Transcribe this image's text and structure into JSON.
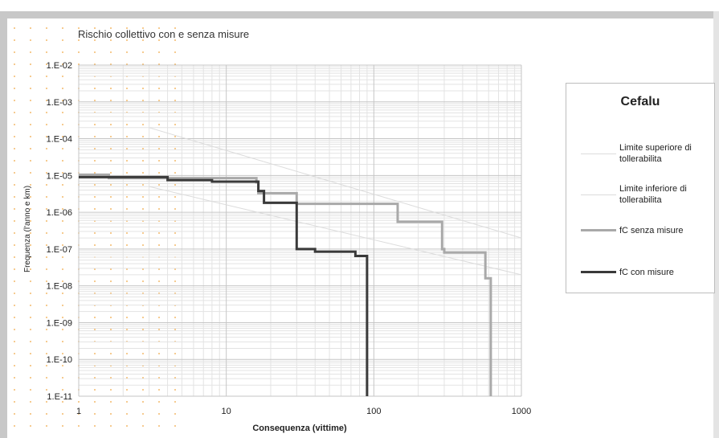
{
  "chart_data": {
    "type": "line",
    "title": "Rischio collettivo con e senza misure",
    "xlabel": "Consequenza (vittime)",
    "ylabel": "Frequenza (l'anno e km)",
    "x_scale": "log",
    "y_scale": "log",
    "xlim": [
      1,
      1000
    ],
    "ylim": [
      1e-11,
      0.01
    ],
    "x_ticks": [
      1,
      10,
      100,
      1000
    ],
    "x_tick_labels": [
      "1",
      "10",
      "100",
      "1000"
    ],
    "y_ticks": [
      0.01,
      0.001,
      0.0001,
      1e-05,
      1e-06,
      1e-07,
      1e-08,
      1e-09,
      1e-10,
      1e-11
    ],
    "y_tick_labels": [
      "1.E-02",
      "1.E-03",
      "1.E-04",
      "1.E-05",
      "1.E-06",
      "1.E-07",
      "1.E-08",
      "1.E-09",
      "1.E-10",
      "1.E-11"
    ],
    "grid": true,
    "legend": {
      "title": "Cefalu",
      "position": "right"
    },
    "series": [
      {
        "name": "Limite superiore di tollerabilita",
        "color": "#dcdcdc",
        "line_width": 1,
        "x": [
          3,
          1000
        ],
        "y": [
          0.0002,
          2e-07
        ]
      },
      {
        "name": "Limite inferiore di tollerabilita",
        "color": "#dcdcdc",
        "line_width": 1,
        "x": [
          3,
          1000
        ],
        "y": [
          5e-06,
          2e-08
        ]
      },
      {
        "name": "fC senza misure",
        "color": "#a9a9a9",
        "line_width": 3,
        "step": true,
        "x": [
          1,
          1.6,
          1.6,
          16,
          16,
          16.5,
          16.5,
          30,
          30,
          145,
          145,
          290,
          290,
          300,
          300,
          570,
          570,
          620,
          620
        ],
        "y": [
          1.05e-05,
          1.05e-05,
          8.5e-06,
          8.5e-06,
          6.5e-06,
          6.5e-06,
          3.3e-06,
          3.3e-06,
          1.7e-06,
          1.7e-06,
          5.5e-07,
          5.5e-07,
          1e-07,
          1e-07,
          8e-08,
          8e-08,
          1.6e-08,
          1.6e-08,
          1e-11
        ]
      },
      {
        "name": "fC con misure",
        "color": "#3a3a3a",
        "line_width": 3,
        "step": true,
        "x": [
          1,
          4,
          4,
          8,
          8,
          16.5,
          16.5,
          18,
          18,
          30,
          30,
          40,
          40,
          75,
          75,
          90,
          90
        ],
        "y": [
          9e-06,
          9e-06,
          7.5e-06,
          7.5e-06,
          6.8e-06,
          6.8e-06,
          3.8e-06,
          3.8e-06,
          1.8e-06,
          1.8e-06,
          1e-07,
          1e-07,
          8.5e-08,
          8.5e-08,
          6.5e-08,
          6.5e-08,
          1e-11
        ]
      }
    ]
  }
}
